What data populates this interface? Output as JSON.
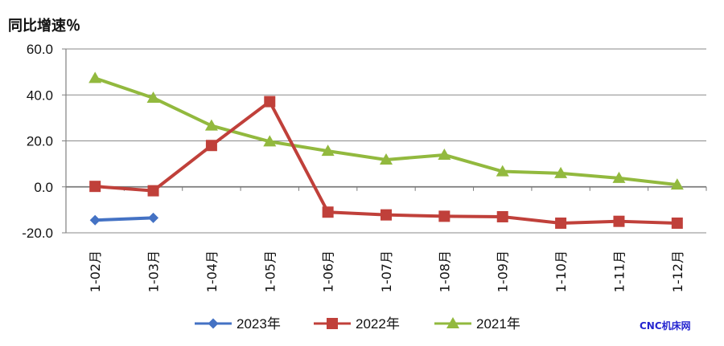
{
  "chart_data": {
    "type": "line",
    "ylabel": "同比增速％",
    "categories": [
      "1-02月",
      "1-03月",
      "1-04月",
      "1-05月",
      "1-06月",
      "1-07月",
      "1-08月",
      "1-09月",
      "1-10月",
      "1-11月",
      "1-12月"
    ],
    "ylim": [
      -20,
      60
    ],
    "yticks": [
      "60.0",
      "40.0",
      "20.0",
      "0.0",
      "-20.0"
    ],
    "grid": true,
    "legend_position": "bottom",
    "series": [
      {
        "name": "2023年",
        "color": "#4472c4",
        "marker": "diamond",
        "values": [
          -14.5,
          -13.5,
          null,
          null,
          null,
          null,
          null,
          null,
          null,
          null,
          null
        ]
      },
      {
        "name": "2022年",
        "color": "#c0403a",
        "marker": "square",
        "values": [
          0.2,
          -1.7,
          18.0,
          37.1,
          -11.0,
          -12.2,
          -12.8,
          -13.0,
          -15.8,
          -15.0,
          -15.8
        ]
      },
      {
        "name": "2021年",
        "color": "#92b93e",
        "marker": "triangle",
        "values": [
          47.3,
          38.7,
          26.6,
          19.7,
          15.6,
          11.8,
          13.9,
          6.7,
          5.9,
          3.8,
          0.9
        ]
      }
    ]
  },
  "watermark": "CNC机床网"
}
